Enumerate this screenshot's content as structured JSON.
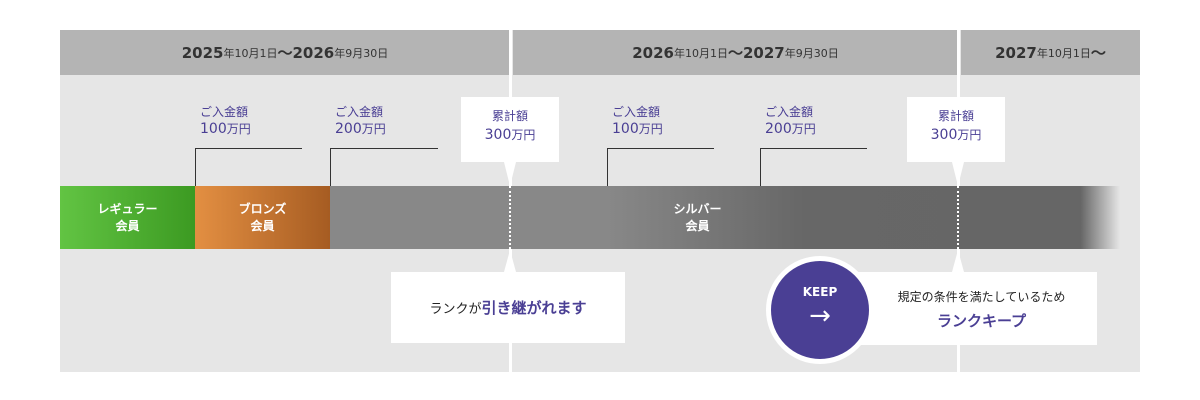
{
  "periods": [
    {
      "year_start": "2025",
      "date_start": "年10月1日",
      "sep": "〜",
      "year_end": "2026",
      "date_end": "年9月30日"
    },
    {
      "year_start": "2026",
      "date_start": "年10月1日",
      "sep": "〜",
      "year_end": "2027",
      "date_end": "年9月30日"
    },
    {
      "year_start": "2027",
      "date_start": "年10月1日",
      "sep": "〜"
    }
  ],
  "deposits": [
    {
      "label": "ご入金額",
      "amount": "100",
      "unit": "万円"
    },
    {
      "label": "ご入金額",
      "amount": "200",
      "unit": "万円"
    },
    {
      "label": "ご入金額",
      "amount": "100",
      "unit": "万円"
    },
    {
      "label": "ご入金額",
      "amount": "200",
      "unit": "万円"
    }
  ],
  "cumulative": [
    {
      "label": "累計額",
      "amount": "300",
      "unit": "万円"
    },
    {
      "label": "累計額",
      "amount": "300",
      "unit": "万円"
    }
  ],
  "ranks": [
    {
      "line1": "レギュラー",
      "line2": "会員",
      "color": "#4fb536"
    },
    {
      "line1": "ブロンズ",
      "line2": "会員",
      "color": "#d9843a"
    },
    {
      "line1": "シルバー",
      "line2": "会員",
      "color": "#888888"
    }
  ],
  "notes": {
    "inherit_prefix": "ランクが",
    "inherit_highlight": "引き継がれます",
    "keep_badge": "KEEP",
    "keep_arrow": "→",
    "keep_text": "規定の条件を満たしているため",
    "keep_highlight": "ランクキープ"
  },
  "accent": "#4a3f94"
}
